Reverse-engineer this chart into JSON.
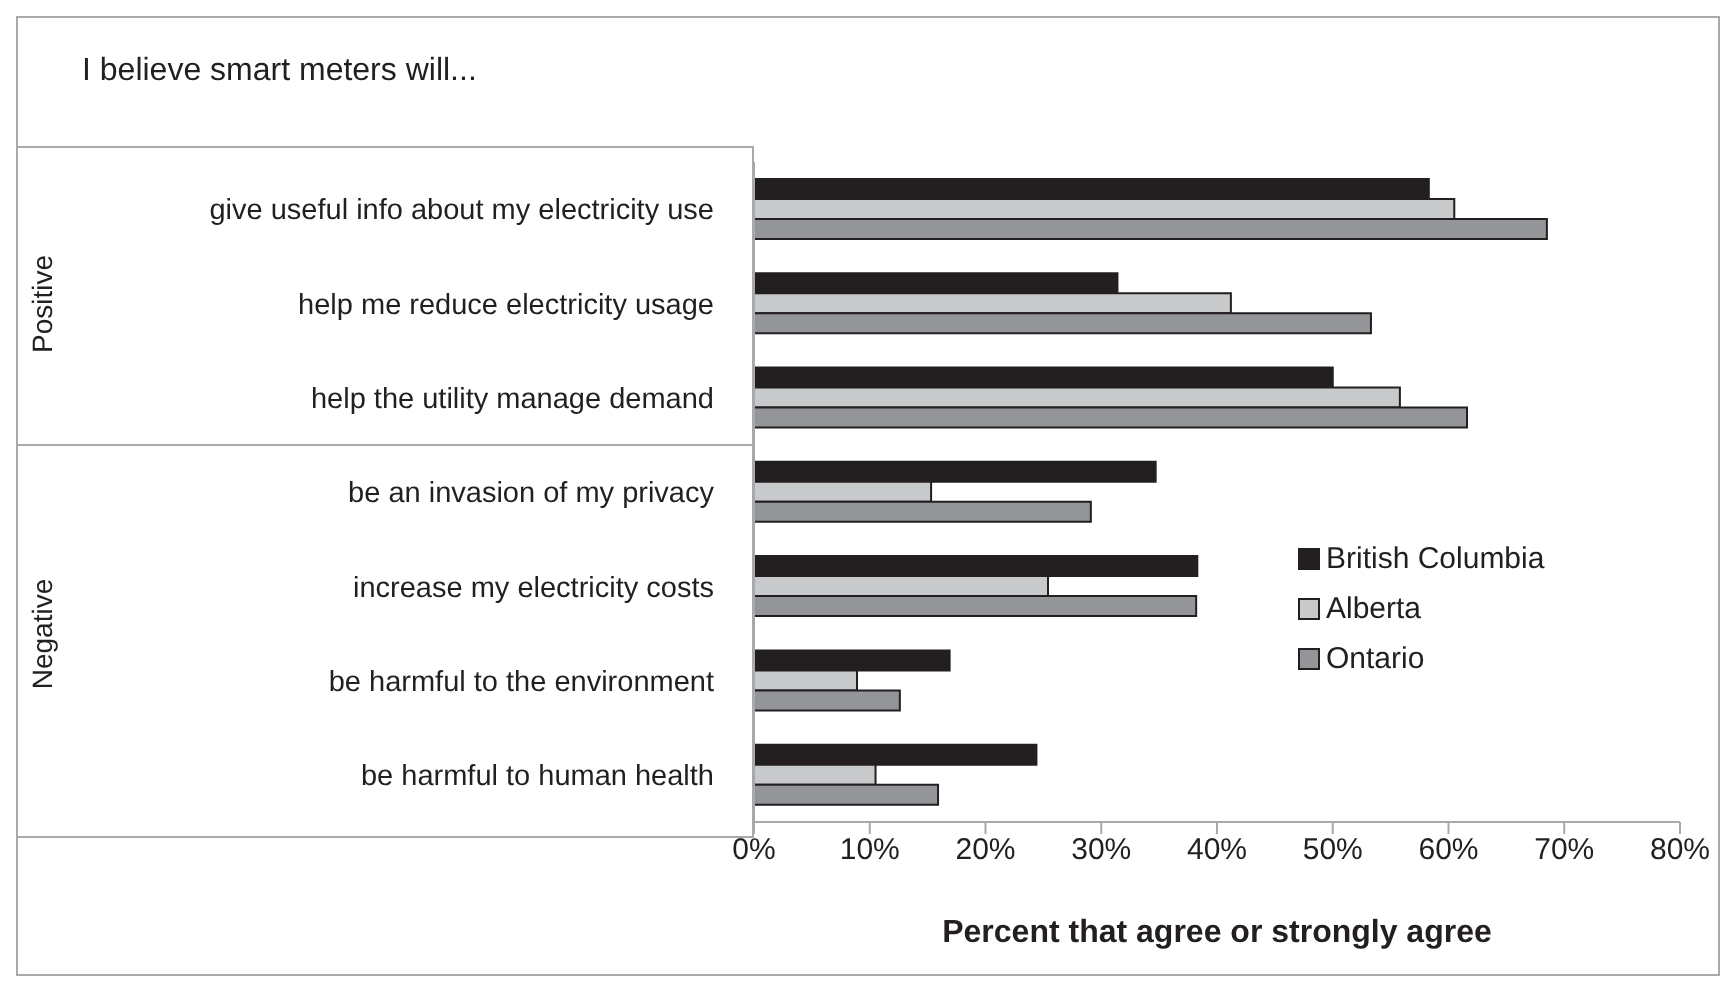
{
  "chart_data": {
    "type": "bar",
    "orientation": "horizontal",
    "title": "I believe smart meters will...",
    "xlabel": "Percent that agree or strongly agree",
    "categories": [
      "give useful info about my electricity use",
      "help me reduce electricity usage",
      "help the utility manage demand",
      "be an invasion of my privacy",
      "increase my electricity costs",
      "be harmful to the environment",
      "be harmful to human health"
    ],
    "series": [
      {
        "name": "British Columbia",
        "color": "#231f20",
        "values": [
          58.3,
          31.4,
          50.0,
          34.7,
          38.3,
          16.9,
          24.4
        ]
      },
      {
        "name": "Alberta",
        "color": "#c8c9cb",
        "values": [
          60.5,
          41.2,
          55.8,
          15.3,
          25.4,
          8.9,
          10.5
        ]
      },
      {
        "name": "Ontario",
        "color": "#939598",
        "values": [
          68.5,
          53.3,
          61.6,
          29.1,
          38.2,
          12.6,
          15.9
        ]
      }
    ],
    "xlim": [
      0,
      80
    ],
    "xticks": [
      {
        "value": 0,
        "label": "0%"
      },
      {
        "value": 10,
        "label": "10%"
      },
      {
        "value": 20,
        "label": "20%"
      },
      {
        "value": 30,
        "label": "30%"
      },
      {
        "value": 40,
        "label": "40%"
      },
      {
        "value": 50,
        "label": "50%"
      },
      {
        "value": 60,
        "label": "60%"
      },
      {
        "value": 70,
        "label": "70%"
      },
      {
        "value": 80,
        "label": "80%"
      }
    ],
    "annotations": [
      "Positive",
      "Negative"
    ],
    "legend": "right"
  }
}
